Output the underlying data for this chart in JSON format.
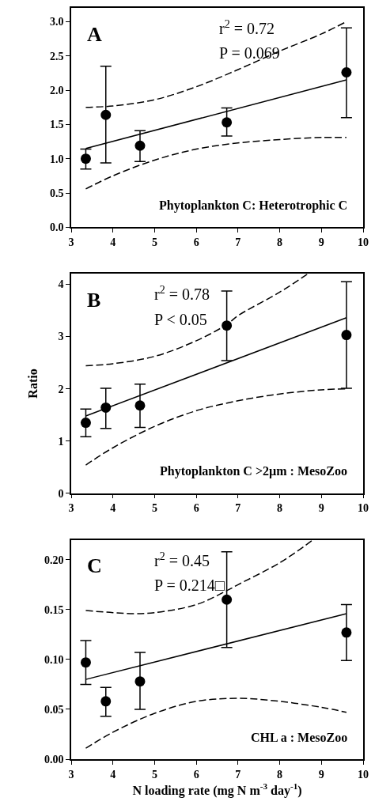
{
  "chart_data": [
    {
      "type": "scatter",
      "xlim": [
        3,
        10
      ],
      "xticks": [
        3,
        4,
        5,
        6,
        7,
        8,
        9,
        10
      ],
      "ylim": [
        0,
        3.2
      ],
      "yticks": [
        {
          "value": 0,
          "label": "0.0"
        },
        0.5,
        {
          "value": 1,
          "label": "1.0"
        },
        1.5,
        {
          "value": 2,
          "label": "2.0"
        },
        2.5,
        {
          "value": 3,
          "label": "3.0"
        }
      ],
      "annotations": [
        "A",
        "r$^{2}$ = 0.72",
        "P = 0.069",
        "Phytoplankton C: Heterotrophic C"
      ],
      "series": [
        {
          "color": "#000000",
          "marker": "circle",
          "x": [
            3.35,
            3.83,
            4.65,
            6.73,
            9.6
          ],
          "values": [
            1.0,
            1.64,
            1.19,
            1.53,
            2.26
          ],
          "errors": [
            [
              0.85,
              1.14
            ],
            [
              0.94,
              2.35
            ],
            [
              0.96,
              1.41
            ],
            [
              1.33,
              1.74
            ],
            [
              1.6,
              2.91
            ]
          ]
        },
        {
          "type": "line",
          "color": "#000000",
          "line_style": "solid",
          "x": [
            3.35,
            9.6
          ],
          "values": [
            1.15,
            2.15
          ]
        },
        {
          "type": "line",
          "color": "#000000",
          "line_style": "dashed",
          "x": [
            3.35,
            4,
            5,
            6,
            7,
            8,
            9,
            9.6
          ],
          "values": [
            1.75,
            1.77,
            1.86,
            2.05,
            2.3,
            2.57,
            2.82,
            3.0
          ]
        },
        {
          "type": "line",
          "color": "#000000",
          "line_style": "dashed",
          "x": [
            3.35,
            4,
            5,
            6,
            7,
            8,
            9,
            9.6
          ],
          "values": [
            0.56,
            0.75,
            0.98,
            1.14,
            1.23,
            1.28,
            1.31,
            1.31
          ]
        }
      ]
    },
    {
      "type": "scatter",
      "xlim": [
        3,
        10
      ],
      "xticks": [
        3,
        4,
        5,
        6,
        7,
        8,
        9,
        10
      ],
      "ylim": [
        0,
        4.2
      ],
      "yticks": [
        0,
        1,
        2,
        3,
        4
      ],
      "ylabel": "Ratio",
      "annotations": [
        "B",
        "r$^{2}$ = 0.78",
        "P < 0.05",
        "Phytoplankton C >2µm : MesoZoo"
      ],
      "series": [
        {
          "color": "#000000",
          "marker": "circle",
          "x": [
            3.35,
            3.83,
            4.65,
            6.73,
            9.6
          ],
          "values": [
            1.35,
            1.64,
            1.68,
            3.21,
            3.03
          ],
          "errors": [
            [
              1.08,
              1.61
            ],
            [
              1.24,
              2.01
            ],
            [
              1.26,
              2.09
            ],
            [
              2.54,
              3.87
            ],
            [
              2.01,
              4.05
            ]
          ]
        },
        {
          "type": "line",
          "color": "#000000",
          "line_style": "solid",
          "x": [
            3.35,
            9.6
          ],
          "values": [
            1.48,
            3.36
          ]
        },
        {
          "type": "line",
          "color": "#000000",
          "line_style": "dashed",
          "x": [
            3.35,
            4,
            5,
            6,
            6.73,
            7,
            8,
            8.67
          ],
          "values": [
            2.44,
            2.48,
            2.62,
            2.92,
            3.23,
            3.4,
            3.85,
            4.2
          ]
        },
        {
          "type": "line",
          "color": "#000000",
          "line_style": "dashed",
          "x": [
            3.35,
            4,
            5,
            6,
            7,
            8,
            9,
            9.6
          ],
          "values": [
            0.54,
            0.87,
            1.28,
            1.58,
            1.77,
            1.9,
            1.98,
            2.0
          ]
        }
      ]
    },
    {
      "type": "scatter",
      "xlim": [
        3,
        10
      ],
      "xticks": [
        3,
        4,
        5,
        6,
        7,
        8,
        9,
        10
      ],
      "ylim": [
        0,
        0.22
      ],
      "yticks": [
        {
          "value": 0,
          "label": "0.00"
        },
        0.05,
        {
          "value": 0.1,
          "label": "0.10"
        },
        0.15,
        {
          "value": 0.2,
          "label": "0.20"
        }
      ],
      "xlabel": "N loading rate (mg N m$^{-3}$ day$^{-1}$)",
      "annotations": [
        "C",
        "r$^{2}$ = 0.45",
        "P = 0.214□",
        "CHL a : MesoZoo"
      ],
      "series": [
        {
          "color": "#000000",
          "marker": "circle",
          "x": [
            3.35,
            3.83,
            4.65,
            6.73,
            9.6
          ],
          "values": [
            0.097,
            0.058,
            0.078,
            0.16,
            0.127
          ],
          "errors": [
            [
              0.075,
              0.119
            ],
            [
              0.043,
              0.072
            ],
            [
              0.05,
              0.107
            ],
            [
              0.112,
              0.208
            ],
            [
              0.099,
              0.155
            ]
          ]
        },
        {
          "type": "line",
          "color": "#000000",
          "line_style": "solid",
          "x": [
            3.35,
            9.6
          ],
          "values": [
            0.08,
            0.146
          ]
        },
        {
          "type": "line",
          "color": "#000000",
          "line_style": "dashed",
          "x": [
            3.35,
            4,
            4.5,
            5,
            6,
            6.73,
            7,
            8,
            8.8
          ],
          "values": [
            0.149,
            0.147,
            0.146,
            0.147,
            0.155,
            0.169,
            0.175,
            0.197,
            0.22
          ]
        },
        {
          "type": "line",
          "color": "#000000",
          "line_style": "dashed",
          "x": [
            3.35,
            4,
            5,
            6,
            7,
            8,
            9,
            9.6
          ],
          "values": [
            0.011,
            0.027,
            0.046,
            0.058,
            0.061,
            0.058,
            0.052,
            0.047
          ]
        }
      ]
    }
  ]
}
